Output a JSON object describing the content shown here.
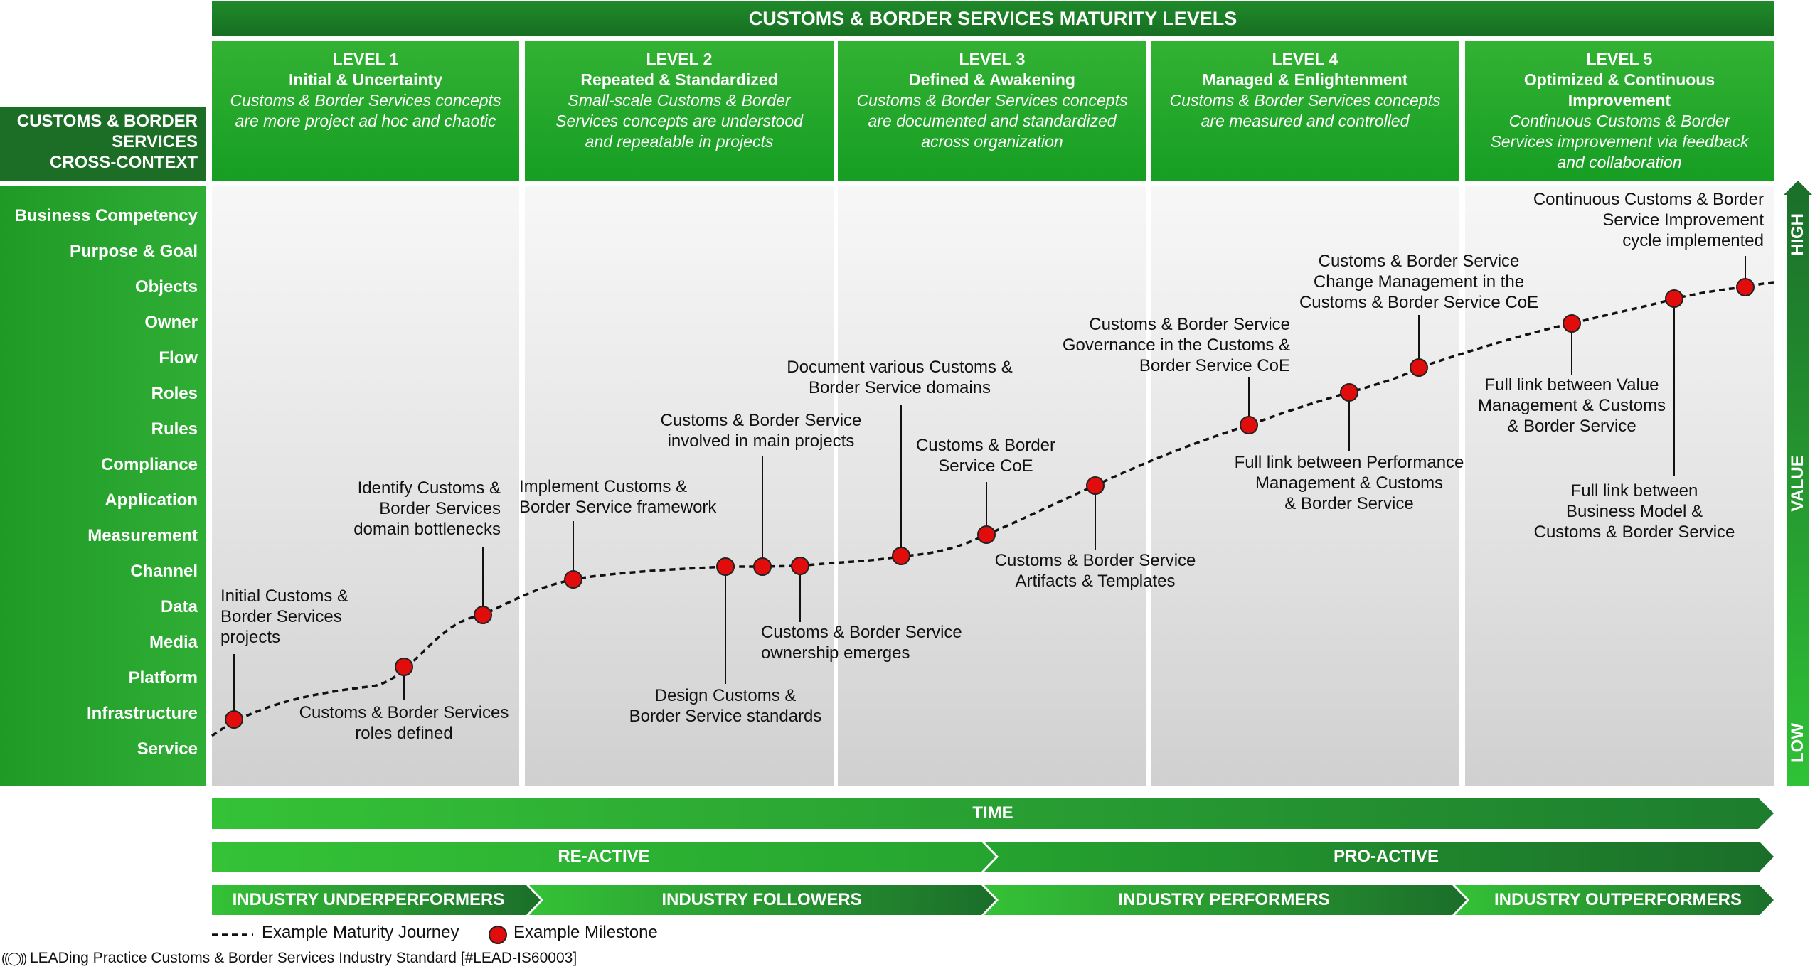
{
  "header": {
    "title": "CUSTOMS & BORDER SERVICES MATURITY LEVELS"
  },
  "cross_context": {
    "line1": "CUSTOMS & BORDER",
    "line2": "SERVICES",
    "line3": "CROSS-CONTEXT"
  },
  "levels": [
    {
      "num": "LEVEL 1",
      "name": "Initial & Uncertainty",
      "desc": [
        "Customs & Border Services concepts",
        "are more project ad hoc and chaotic"
      ]
    },
    {
      "num": "LEVEL 2",
      "name": "Repeated & Standardized",
      "desc": [
        "Small-scale Customs & Border",
        "Services concepts are understood",
        "and repeatable in projects"
      ]
    },
    {
      "num": "LEVEL 3",
      "name": "Defined & Awakening",
      "desc": [
        "Customs & Border Services concepts",
        "are documented and standardized",
        "across organization"
      ]
    },
    {
      "num": "LEVEL 4",
      "name": "Managed & Enlightenment",
      "desc": [
        "Customs & Border Services concepts",
        "are measured and controlled"
      ]
    },
    {
      "num": "LEVEL 5",
      "name": "Optimized & Continuous",
      "name2": "Improvement",
      "desc": [
        "Continuous Customs & Border",
        "Services improvement via feedback",
        "and collaboration"
      ]
    }
  ],
  "rows": [
    "Business Competency",
    "Purpose & Goal",
    "Objects",
    "Owner",
    "Flow",
    "Roles",
    "Rules",
    "Compliance",
    "Application",
    "Measurement",
    "Channel",
    "Data",
    "Media",
    "Platform",
    "Infrastructure",
    "Service"
  ],
  "value_axis": {
    "high": "HIGH",
    "value": "VALUE",
    "low": "LOW"
  },
  "milestones": [
    {
      "id": "m1",
      "lines": [
        "Initial Customs &",
        "Border Services",
        "projects"
      ]
    },
    {
      "id": "m2",
      "lines": [
        "Customs & Border Services",
        "roles defined"
      ]
    },
    {
      "id": "m3",
      "lines": [
        "Identify Customs &",
        "Border Services",
        "domain bottlenecks"
      ]
    },
    {
      "id": "m4",
      "lines": [
        "Implement Customs &",
        "Border Service framework"
      ]
    },
    {
      "id": "m5",
      "lines": [
        "Design Customs &",
        "Border Service standards"
      ]
    },
    {
      "id": "m6",
      "lines": [
        "Customs & Border Service",
        "involved  in main projects"
      ]
    },
    {
      "id": "m7",
      "lines": [
        "Customs & Border Service",
        "ownership emerges"
      ]
    },
    {
      "id": "m8",
      "lines": [
        "Document various Customs &",
        "Border Service domains"
      ]
    },
    {
      "id": "m9",
      "lines": [
        "Customs & Border",
        "Service CoE"
      ]
    },
    {
      "id": "m10",
      "lines": [
        "Customs & Border Service",
        "Artifacts & Templates"
      ]
    },
    {
      "id": "m11",
      "lines": [
        "Customs & Border Service",
        "Governance in the Customs &",
        "Border Service CoE"
      ]
    },
    {
      "id": "m12",
      "lines": [
        "Full link between Performance",
        "Management & Customs",
        "& Border Service"
      ]
    },
    {
      "id": "m13",
      "lines": [
        "Customs & Border Service",
        "Change Management in the",
        "Customs & Border Service CoE"
      ]
    },
    {
      "id": "m14",
      "lines": [
        "Full link between Value",
        "Management & Customs",
        "& Border Service"
      ]
    },
    {
      "id": "m15",
      "lines": [
        "Full link between",
        "Business Model &",
        "Customs & Border Service"
      ]
    },
    {
      "id": "m16",
      "lines": [
        "Continuous Customs & Border",
        "Service Improvement",
        "cycle implemented"
      ]
    }
  ],
  "time_bar": "TIME",
  "stance_bars": [
    "RE-ACTIVE",
    "PRO-ACTIVE"
  ],
  "industry_bars": [
    "INDUSTRY UNDERPERFORMERS",
    "INDUSTRY FOLLOWERS",
    "INDUSTRY PERFORMERS",
    "INDUSTRY OUTPERFORMERS"
  ],
  "legend": {
    "journey": "Example Maturity Journey",
    "milestone": "Example Milestone"
  },
  "footer": "LEADing Practice Customs & Border Services Industry Standard [#LEAD-IS60003]",
  "colors": {
    "green_dark": "#1b6e2a",
    "green": "#22a22a",
    "milestone_red": "#e10d0d"
  }
}
